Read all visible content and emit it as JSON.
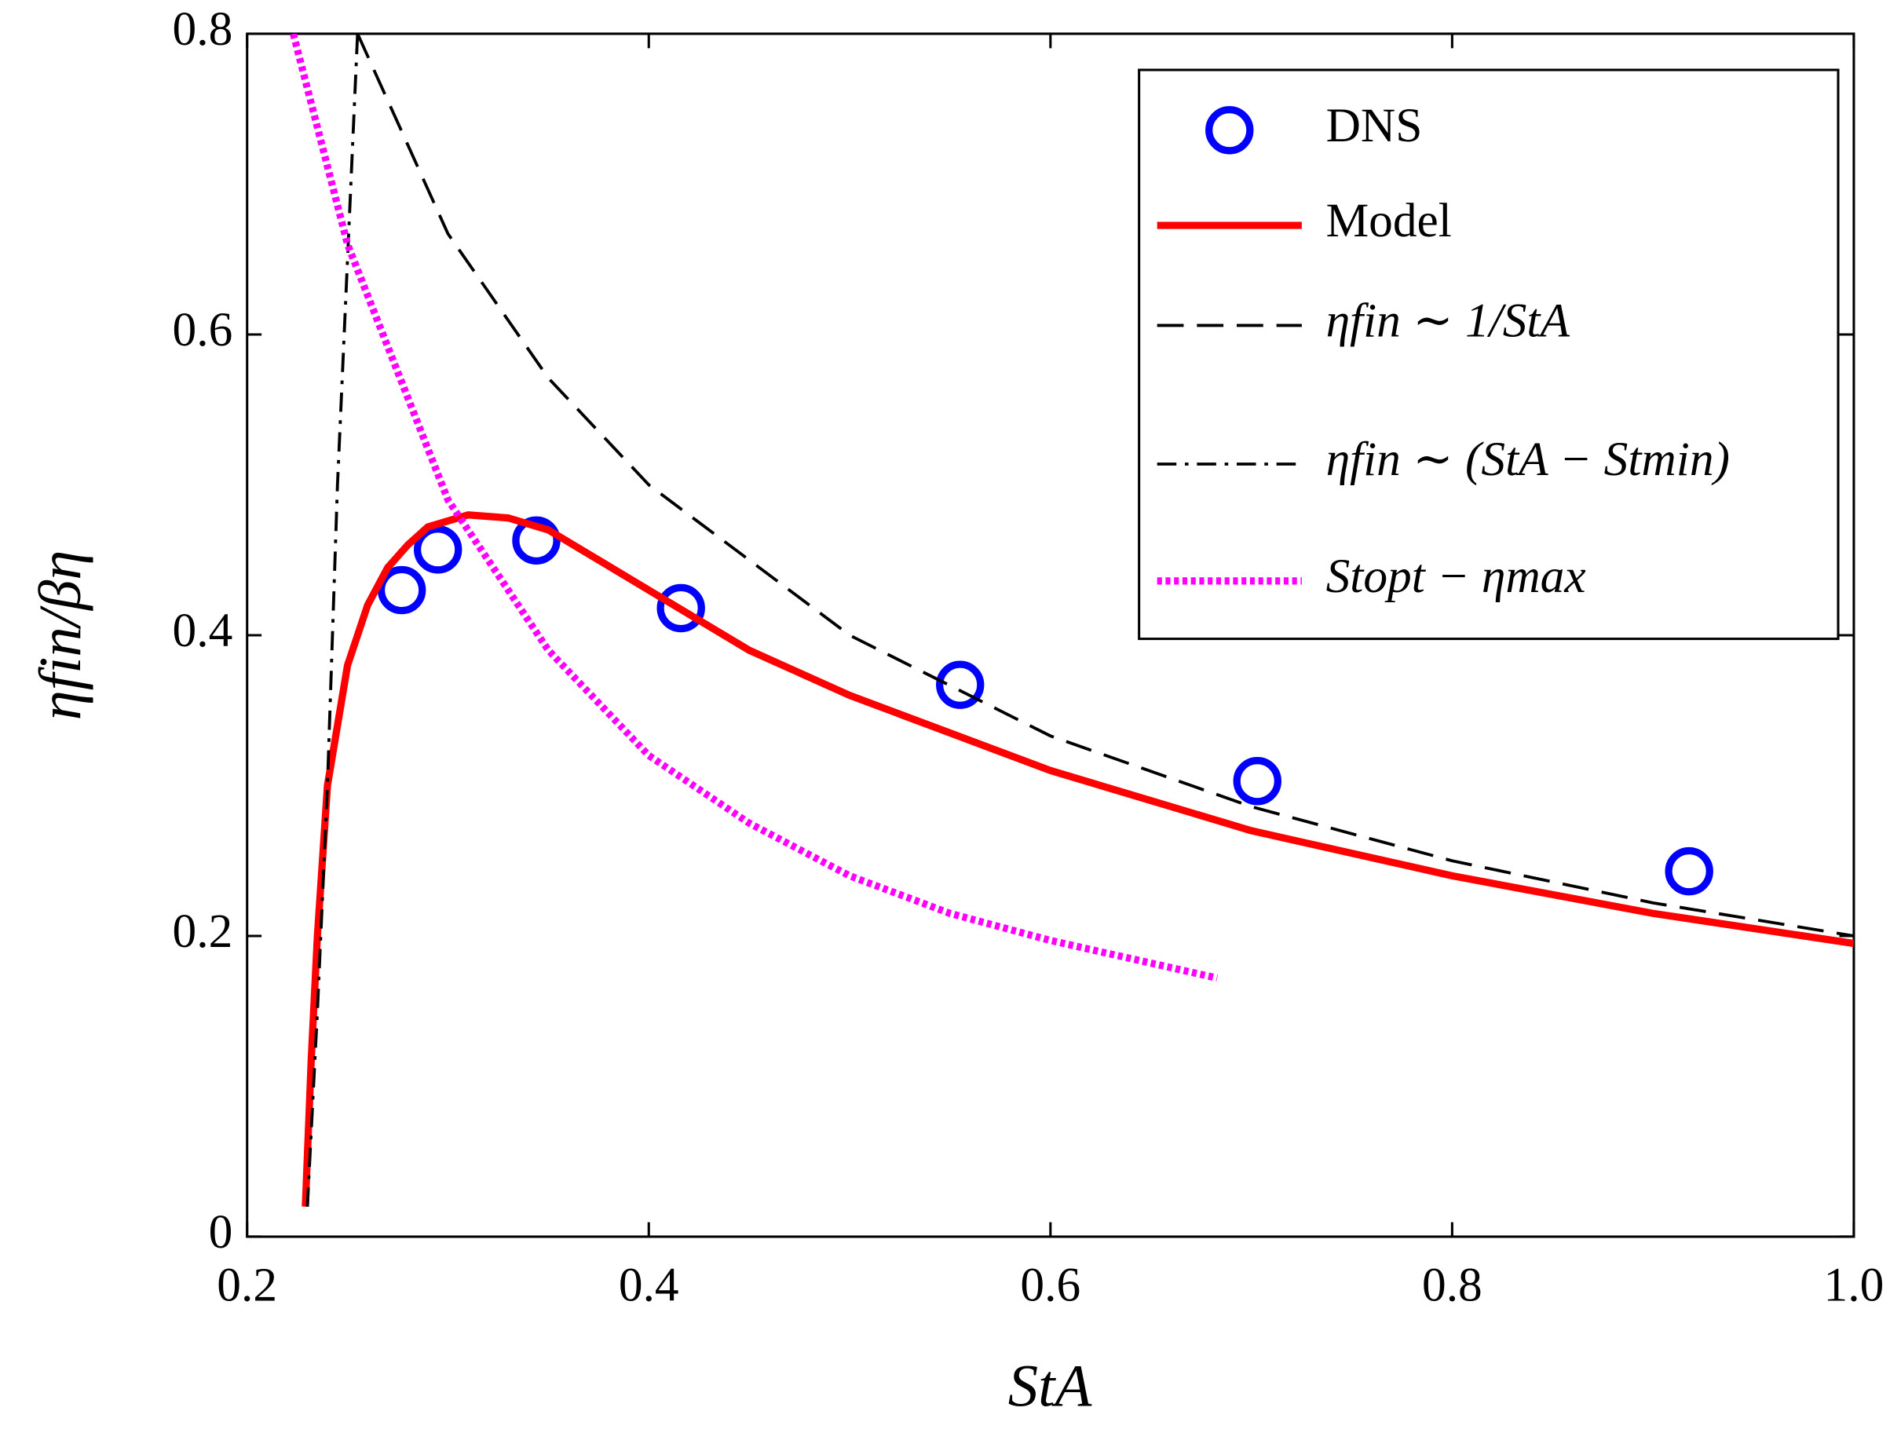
{
  "chart_data": {
    "type": "line",
    "xlabel": "StA",
    "ylabel": "ηfin/βη",
    "xlim": [
      0.2,
      1.0
    ],
    "ylim": [
      0,
      0.8
    ],
    "xticks": [
      0.2,
      0.4,
      0.6,
      0.8,
      {
        "value": 1.0,
        "label": "1.0"
      }
    ],
    "yticks": [
      0,
      0.2,
      0.4,
      0.6,
      0.8
    ],
    "legend": "upper right",
    "series": [
      {
        "name": "DNS",
        "color": "#0000ff",
        "style": "circle",
        "x": [
          0.277,
          0.295,
          0.344,
          0.416,
          0.555,
          0.703,
          0.918
        ],
        "values": [
          0.43,
          0.457,
          0.463,
          0.418,
          0.367,
          0.303,
          0.243
        ]
      },
      {
        "name": "Model",
        "color": "#ff0000",
        "style": "solid",
        "x": [
          0.229,
          0.232,
          0.235,
          0.24,
          0.25,
          0.26,
          0.27,
          0.28,
          0.29,
          0.31,
          0.33,
          0.35,
          0.4,
          0.45,
          0.5,
          0.55,
          0.6,
          0.7,
          0.8,
          0.9,
          1.0
        ],
        "values": [
          0.02,
          0.12,
          0.2,
          0.3,
          0.38,
          0.42,
          0.445,
          0.46,
          0.472,
          0.48,
          0.478,
          0.47,
          0.43,
          0.39,
          0.36,
          0.335,
          0.31,
          0.27,
          0.24,
          0.215,
          0.195
        ]
      },
      {
        "name": "ηfin ∼ 1/StA",
        "color": "#000000",
        "style": "dashed",
        "x": [
          0.255,
          0.3,
          0.35,
          0.4,
          0.5,
          0.6,
          0.7,
          0.8,
          0.9,
          1.0
        ],
        "values": [
          0.8,
          0.667,
          0.571,
          0.5,
          0.4,
          0.333,
          0.286,
          0.25,
          0.222,
          0.2
        ]
      },
      {
        "name": "ηfin ∼ (StA − Stmin)",
        "color": "#000000",
        "style": "dashdot",
        "x": [
          0.23,
          0.235,
          0.24,
          0.245,
          0.25,
          0.255
        ],
        "values": [
          0.02,
          0.15,
          0.3,
          0.5,
          0.65,
          0.8
        ]
      },
      {
        "name": "Stopt − ηmax",
        "color": "#ff00ff",
        "style": "dotted",
        "x": [
          0.223,
          0.25,
          0.3,
          0.35,
          0.4,
          0.45,
          0.5,
          0.55,
          0.6,
          0.683
        ],
        "values": [
          0.8,
          0.66,
          0.49,
          0.39,
          0.32,
          0.275,
          0.24,
          0.215,
          0.197,
          0.172
        ]
      }
    ]
  }
}
